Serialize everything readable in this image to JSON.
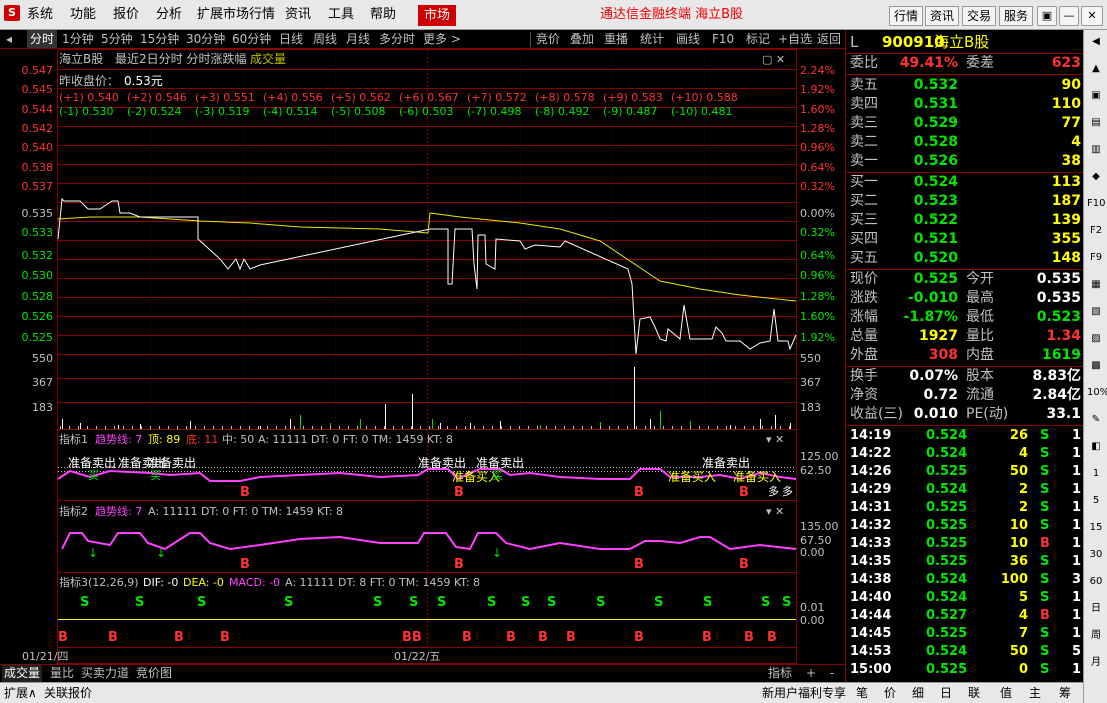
{
  "titlebar": {
    "logo": "S",
    "menus": [
      "系统",
      "功能",
      "报价",
      "分析",
      "扩展市场行情",
      "资讯",
      "工具",
      "帮助"
    ],
    "market": "市场",
    "window_title": "通达信金融终端  海立B股",
    "right_buttons": [
      "行情",
      "资讯",
      "交易",
      "服务"
    ],
    "window_controls": [
      "▣",
      "—",
      "▢",
      "✕"
    ]
  },
  "periodbar": {
    "left": "◂",
    "items": [
      "分时",
      "1分钟",
      "5分钟",
      "15分钟",
      "30分钟",
      "60分钟",
      "日线",
      "周线",
      "月线",
      "多分时",
      "更多 >"
    ],
    "active_index": 0,
    "right_items": [
      "竞价",
      "叠加",
      "重播",
      "统计",
      "画线",
      "F10",
      "标记",
      "+自选",
      "返回"
    ]
  },
  "chart": {
    "header": {
      "name": "海立B股",
      "desc": "最近2日分时 分时涨跌幅",
      "vol": "成交量"
    },
    "prev_close_label": "昨收盘价：",
    "prev_close": "0.53元",
    "plus_levels": [
      "(+1) 0.540",
      "(+2) 0.546",
      "(+3) 0.551",
      "(+4) 0.556",
      "(+5) 0.562",
      "(+6) 0.567",
      "(+7) 0.572",
      "(+8) 0.578",
      "(+9) 0.583",
      "(+10) 0.588"
    ],
    "minus_levels": [
      "(-1) 0.530",
      "(-2) 0.524",
      "(-3) 0.519",
      "(-4) 0.514",
      "(-5) 0.508",
      "(-6) 0.503",
      "(-7) 0.498",
      "(-8) 0.492",
      "(-9) 0.487",
      "(-10) 0.481"
    ],
    "price_ticks": [
      "0.547",
      "0.545",
      "0.544",
      "0.542",
      "0.540",
      "0.538",
      "0.537",
      "0.535",
      "0.533",
      "0.532",
      "0.530",
      "0.528",
      "0.526",
      "0.525"
    ],
    "pct_ticks": [
      "2.24%",
      "1.92%",
      "1.60%",
      "1.28%",
      "0.96%",
      "0.64%",
      "0.32%",
      "0.00%",
      "0.32%",
      "0.64%",
      "0.96%",
      "1.28%",
      "1.60%",
      "1.92%"
    ],
    "vol_ticks_left": [
      "550",
      "367",
      "183"
    ],
    "vol_ticks_right": [
      "550",
      "367",
      "183"
    ],
    "ind1": {
      "title": "指标1",
      "name": "趋势线: 7",
      "top": "顶: 89",
      "bottom": "底: 11",
      "mid": "中: 50",
      "rest": "A: 11111  DT: 0  FT: 0  TM: 1459  KT: 8",
      "ticks": [
        "125.00",
        "62.50"
      ],
      "labels": [
        "准备卖出",
        "准备卖出",
        "准备卖出",
        "准备卖出",
        "准备卖出",
        "准备卖出",
        "准备买入",
        "准备买入",
        "准备买入"
      ],
      "buy_short": [
        "买",
        "买",
        "买"
      ],
      "extra": [
        "多",
        "多"
      ]
    },
    "ind2": {
      "title": "指标2",
      "name": "趋势线: 7",
      "rest": "A: 11111  DT: 0  FT: 0  TM: 1459  KT: 8",
      "ticks": [
        "135.00",
        "67.50",
        "0.00"
      ]
    },
    "ind3": {
      "title": "指标3(12,26,9)",
      "dif": "DIF: -0",
      "dea": "DEA: -0",
      "macd": "MACD: -0",
      "rest": "A: 11111  DT: 8  FT: 0  TM: 1459  KT: 8",
      "ticks": [
        "0.01",
        "0.00"
      ],
      "s_marks": [
        "S",
        "S",
        "S",
        "S",
        "S",
        "S",
        "S",
        "S",
        "S",
        "S",
        "S",
        "S",
        "S",
        "S",
        "S",
        "S"
      ],
      "b_marks": [
        "B",
        "B",
        "B",
        "B",
        "BB",
        "B",
        "B",
        "B",
        "B",
        "B",
        "B",
        "B",
        "B"
      ]
    },
    "dates": [
      "01/21/四",
      "01/22/五"
    ],
    "ctrl": "▾  ✕",
    "b_labels": [
      "B",
      "B",
      "B",
      "B",
      "B"
    ]
  },
  "bottomtabs": {
    "tabs": [
      "成交量",
      "量比",
      "买卖力道",
      "竞价图"
    ],
    "right": [
      "指标",
      "+",
      "-"
    ]
  },
  "statusbar": {
    "left": [
      "扩展∧",
      "关联报价"
    ],
    "promo": "新用户福利专享",
    "tabs": [
      "笔",
      "价",
      "细",
      "日",
      "联",
      "值",
      "主",
      "筹"
    ]
  },
  "quote": {
    "flag": "L",
    "code": "900910",
    "name": "海立B股",
    "weibi_label": "委比",
    "weibi": "49.41%",
    "weicha_label": "委差",
    "weicha": "623",
    "sells": [
      {
        "label": "卖五",
        "price": "0.532",
        "vol": "90"
      },
      {
        "label": "卖四",
        "price": "0.531",
        "vol": "110"
      },
      {
        "label": "卖三",
        "price": "0.529",
        "vol": "77"
      },
      {
        "label": "卖二",
        "price": "0.528",
        "vol": "4"
      },
      {
        "label": "卖一",
        "price": "0.526",
        "vol": "38"
      }
    ],
    "buys": [
      {
        "label": "买一",
        "price": "0.524",
        "vol": "113"
      },
      {
        "label": "买二",
        "price": "0.523",
        "vol": "187"
      },
      {
        "label": "买三",
        "price": "0.522",
        "vol": "139"
      },
      {
        "label": "买四",
        "price": "0.521",
        "vol": "355"
      },
      {
        "label": "买五",
        "price": "0.520",
        "vol": "148"
      }
    ],
    "stats": [
      {
        "l": "现价",
        "v": "0.525",
        "vc": "green",
        "l2": "今开",
        "v2": "0.535",
        "v2c": "white"
      },
      {
        "l": "涨跌",
        "v": "-0.010",
        "vc": "green",
        "l2": "最高",
        "v2": "0.535",
        "v2c": "white"
      },
      {
        "l": "涨幅",
        "v": "-1.87%",
        "vc": "green",
        "l2": "最低",
        "v2": "0.523",
        "v2c": "green"
      },
      {
        "l": "总量",
        "v": "1927",
        "vc": "yellow",
        "l2": "量比",
        "v2": "1.34",
        "v2c": "red"
      },
      {
        "l": "外盘",
        "v": "308",
        "vc": "red",
        "l2": "内盘",
        "v2": "1619",
        "v2c": "green"
      }
    ],
    "stats2": [
      {
        "l": "换手",
        "v": "0.07%",
        "l2": "股本",
        "v2": "8.83亿"
      },
      {
        "l": "净资",
        "v": "0.72",
        "l2": "流通",
        "v2": "2.84亿"
      },
      {
        "l": "收益(三)",
        "v": "0.010",
        "l2": "PE(动)",
        "v2": "33.1"
      }
    ],
    "ticks": [
      {
        "t": "14:19",
        "p": "0.524",
        "v": "26",
        "s": "S",
        "n": "1"
      },
      {
        "t": "14:22",
        "p": "0.524",
        "v": "4",
        "s": "S",
        "n": "1"
      },
      {
        "t": "14:26",
        "p": "0.525",
        "v": "50",
        "s": "S",
        "n": "1"
      },
      {
        "t": "14:29",
        "p": "0.524",
        "v": "2",
        "s": "S",
        "n": "1"
      },
      {
        "t": "14:31",
        "p": "0.525",
        "v": "2",
        "s": "S",
        "n": "1"
      },
      {
        "t": "14:32",
        "p": "0.525",
        "v": "10",
        "s": "S",
        "n": "1"
      },
      {
        "t": "14:33",
        "p": "0.525",
        "v": "10",
        "s": "B",
        "n": "1"
      },
      {
        "t": "14:35",
        "p": "0.525",
        "v": "36",
        "s": "S",
        "n": "1"
      },
      {
        "t": "14:38",
        "p": "0.524",
        "v": "100",
        "s": "S",
        "n": "3"
      },
      {
        "t": "14:40",
        "p": "0.524",
        "v": "5",
        "s": "S",
        "n": "1"
      },
      {
        "t": "14:44",
        "p": "0.527",
        "v": "4",
        "s": "B",
        "n": "1"
      },
      {
        "t": "14:45",
        "p": "0.525",
        "v": "7",
        "s": "S",
        "n": "1"
      },
      {
        "t": "14:53",
        "p": "0.524",
        "v": "50",
        "s": "S",
        "n": "5"
      },
      {
        "t": "15:00",
        "p": "0.525",
        "v": "0",
        "s": "S",
        "n": "1"
      }
    ]
  },
  "sidebar": {
    "items": [
      "◀",
      "▲",
      "▣",
      "▤",
      "▥",
      "◆",
      "F10",
      "F2",
      "F9",
      "▦",
      "▧",
      "▨",
      "▩",
      "10%",
      "✎",
      "◧",
      "1",
      "5",
      "15",
      "30",
      "60",
      "日",
      "周",
      "月"
    ]
  }
}
